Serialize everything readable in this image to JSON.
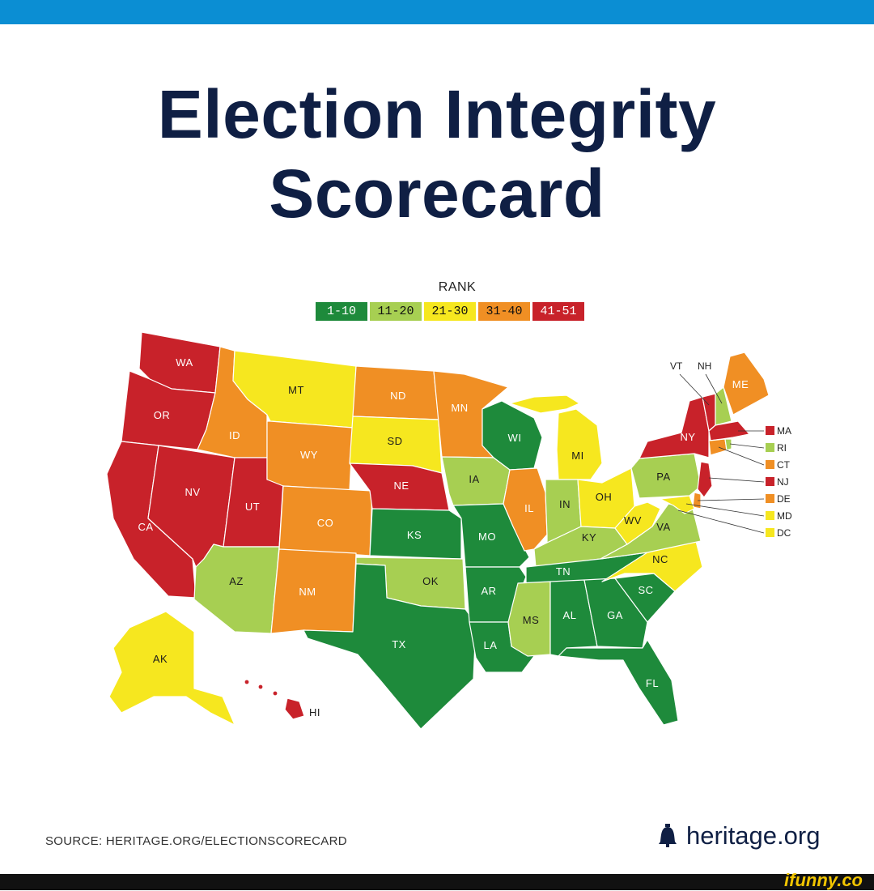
{
  "title_line1": "Election Integrity",
  "title_line2": "Scorecard",
  "legend": {
    "title": "RANK",
    "items": [
      {
        "label": "1-10",
        "color": "#1e8a3b"
      },
      {
        "label": "11-20",
        "color": "#a7cf52"
      },
      {
        "label": "21-30",
        "color": "#f6e71f"
      },
      {
        "label": "31-40",
        "color": "#f08f24"
      },
      {
        "label": "41-51",
        "color": "#c8222a"
      }
    ]
  },
  "states": {
    "WA": {
      "label": "WA",
      "rank_bin": "41-51"
    },
    "OR": {
      "label": "OR",
      "rank_bin": "41-51"
    },
    "CA": {
      "label": "CA",
      "rank_bin": "41-51"
    },
    "NV": {
      "label": "NV",
      "rank_bin": "41-51"
    },
    "UT": {
      "label": "UT",
      "rank_bin": "41-51"
    },
    "ID": {
      "label": "ID",
      "rank_bin": "31-40"
    },
    "MT": {
      "label": "MT",
      "rank_bin": "21-30"
    },
    "WY": {
      "label": "WY",
      "rank_bin": "31-40"
    },
    "CO": {
      "label": "CO",
      "rank_bin": "31-40"
    },
    "AZ": {
      "label": "AZ",
      "rank_bin": "11-20"
    },
    "NM": {
      "label": "NM",
      "rank_bin": "31-40"
    },
    "ND": {
      "label": "ND",
      "rank_bin": "31-40"
    },
    "SD": {
      "label": "SD",
      "rank_bin": "21-30"
    },
    "NE": {
      "label": "NE",
      "rank_bin": "41-51"
    },
    "KS": {
      "label": "KS",
      "rank_bin": "1-10"
    },
    "OK": {
      "label": "OK",
      "rank_bin": "11-20"
    },
    "TX": {
      "label": "TX",
      "rank_bin": "1-10"
    },
    "MN": {
      "label": "MN",
      "rank_bin": "31-40"
    },
    "IA": {
      "label": "IA",
      "rank_bin": "11-20"
    },
    "MO": {
      "label": "MO",
      "rank_bin": "1-10"
    },
    "AR": {
      "label": "AR",
      "rank_bin": "1-10"
    },
    "LA": {
      "label": "LA",
      "rank_bin": "1-10"
    },
    "WI": {
      "label": "WI",
      "rank_bin": "1-10"
    },
    "IL": {
      "label": "IL",
      "rank_bin": "31-40"
    },
    "MI": {
      "label": "MI",
      "rank_bin": "21-30"
    },
    "IN": {
      "label": "IN",
      "rank_bin": "11-20"
    },
    "OH": {
      "label": "OH",
      "rank_bin": "21-30"
    },
    "KY": {
      "label": "KY",
      "rank_bin": "11-20"
    },
    "TN": {
      "label": "TN",
      "rank_bin": "1-10"
    },
    "MS": {
      "label": "MS",
      "rank_bin": "11-20"
    },
    "AL": {
      "label": "AL",
      "rank_bin": "1-10"
    },
    "GA": {
      "label": "GA",
      "rank_bin": "1-10"
    },
    "FL": {
      "label": "FL",
      "rank_bin": "1-10"
    },
    "SC": {
      "label": "SC",
      "rank_bin": "1-10"
    },
    "NC": {
      "label": "NC",
      "rank_bin": "21-30"
    },
    "VA": {
      "label": "VA",
      "rank_bin": "11-20"
    },
    "WV": {
      "label": "WV",
      "rank_bin": "21-30"
    },
    "PA": {
      "label": "PA",
      "rank_bin": "11-20"
    },
    "NY": {
      "label": "NY",
      "rank_bin": "41-51"
    },
    "VT": {
      "label": "VT",
      "rank_bin": "41-51"
    },
    "NH": {
      "label": "NH",
      "rank_bin": "11-20"
    },
    "ME": {
      "label": "ME",
      "rank_bin": "31-40"
    },
    "MA": {
      "label": "MA",
      "rank_bin": "41-51"
    },
    "RI": {
      "label": "RI",
      "rank_bin": "11-20"
    },
    "CT": {
      "label": "CT",
      "rank_bin": "31-40"
    },
    "NJ": {
      "label": "NJ",
      "rank_bin": "41-51"
    },
    "DE": {
      "label": "DE",
      "rank_bin": "31-40"
    },
    "MD": {
      "label": "MD",
      "rank_bin": "21-30"
    },
    "DC": {
      "label": "DC",
      "rank_bin": "21-30"
    },
    "AK": {
      "label": "AK",
      "rank_bin": "21-30"
    },
    "HI": {
      "label": "HI",
      "rank_bin": "41-51"
    }
  },
  "source": "SOURCE: HERITAGE.ORG/ELECTIONSCORECARD",
  "brand": {
    "name": "heritage.org",
    "icon": "liberty-bell-icon"
  },
  "watermark": "ifunny.co"
}
